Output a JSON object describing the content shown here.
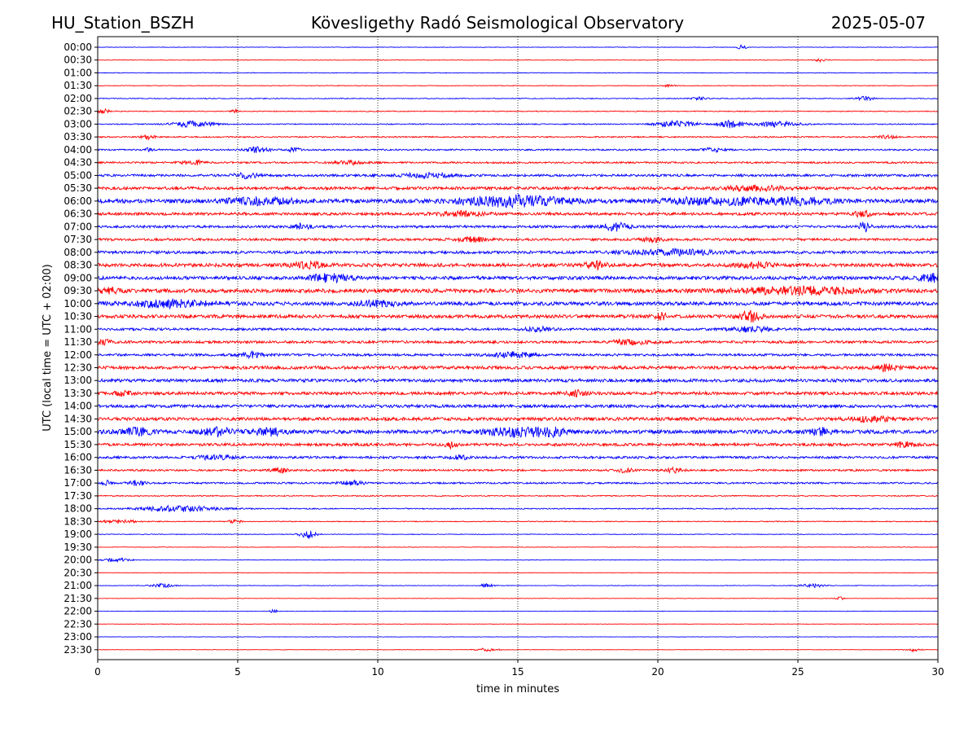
{
  "header": {
    "station": "HU_Station_BSZH",
    "observatory": "Kövesligethy Radó Seismological Observatory",
    "date": "2025-05-07"
  },
  "chart_data": {
    "type": "line",
    "title": "Kövesligethy Radó Seismological Observatory",
    "xlabel": "time in minutes",
    "ylabel": "UTC (local time = UTC + 02:00)",
    "xlim": [
      0,
      30
    ],
    "xticks": [
      0,
      5,
      10,
      15,
      20,
      25,
      30
    ],
    "vertical_gridlines_at": [
      5,
      10,
      15,
      20,
      25
    ],
    "trace_colors": [
      "#0000ff",
      "#ff0000"
    ],
    "rows": [
      {
        "label": "00:00",
        "noise": 0.05,
        "bursts": [
          [
            23.0,
            0.12,
            0.4
          ]
        ]
      },
      {
        "label": "00:30",
        "noise": 0.05,
        "bursts": [
          [
            25.8,
            0.12,
            0.3
          ]
        ]
      },
      {
        "label": "01:00",
        "noise": 0.06,
        "bursts": []
      },
      {
        "label": "01:30",
        "noise": 0.06,
        "bursts": [
          [
            20.4,
            0.12,
            0.3
          ]
        ]
      },
      {
        "label": "02:00",
        "noise": 0.08,
        "bursts": [
          [
            21.5,
            0.2,
            0.3
          ],
          [
            27.4,
            0.2,
            0.4
          ]
        ]
      },
      {
        "label": "02:30",
        "noise": 0.08,
        "bursts": [
          [
            0.2,
            0.15,
            0.5
          ],
          [
            4.9,
            0.1,
            0.3
          ]
        ]
      },
      {
        "label": "03:00",
        "noise": 0.1,
        "bursts": [
          [
            3.4,
            0.55,
            0.5
          ],
          [
            20.7,
            0.5,
            0.55
          ],
          [
            22.6,
            0.3,
            0.7
          ],
          [
            24.3,
            0.6,
            0.45
          ]
        ]
      },
      {
        "label": "03:30",
        "noise": 0.12,
        "bursts": [
          [
            1.8,
            0.15,
            0.45
          ],
          [
            28.2,
            0.2,
            0.35
          ]
        ]
      },
      {
        "label": "04:00",
        "noise": 0.14,
        "bursts": [
          [
            1.8,
            0.15,
            0.4
          ],
          [
            5.7,
            0.3,
            0.55
          ],
          [
            7.0,
            0.15,
            0.4
          ],
          [
            22.0,
            0.3,
            0.35
          ]
        ]
      },
      {
        "label": "04:30",
        "noise": 0.16,
        "bursts": [
          [
            3.4,
            0.3,
            0.45
          ],
          [
            9.0,
            0.4,
            0.35
          ]
        ]
      },
      {
        "label": "05:00",
        "noise": 0.22,
        "bursts": [
          [
            5.3,
            0.3,
            0.45
          ],
          [
            11.7,
            0.6,
            0.45
          ]
        ]
      },
      {
        "label": "05:30",
        "noise": 0.27,
        "bursts": [
          [
            23.5,
            0.8,
            0.4
          ]
        ]
      },
      {
        "label": "06:00",
        "noise": 0.38,
        "bursts": [
          [
            5.8,
            0.8,
            0.6
          ],
          [
            14.8,
            1.3,
            0.9
          ],
          [
            22.2,
            1.5,
            0.6
          ],
          [
            25.2,
            0.8,
            0.45
          ]
        ]
      },
      {
        "label": "06:30",
        "noise": 0.26,
        "bursts": [
          [
            12.9,
            0.6,
            0.4
          ],
          [
            27.3,
            0.2,
            0.6
          ]
        ]
      },
      {
        "label": "07:00",
        "noise": 0.24,
        "bursts": [
          [
            7.3,
            0.2,
            0.5
          ],
          [
            18.5,
            0.3,
            0.75
          ],
          [
            27.4,
            0.15,
            0.9
          ]
        ]
      },
      {
        "label": "07:30",
        "noise": 0.22,
        "bursts": [
          [
            13.3,
            0.4,
            0.45
          ],
          [
            19.8,
            0.25,
            0.55
          ]
        ]
      },
      {
        "label": "08:00",
        "noise": 0.26,
        "bursts": [
          [
            20.5,
            1.2,
            0.45
          ]
        ]
      },
      {
        "label": "08:30",
        "noise": 0.32,
        "bursts": [
          [
            7.5,
            0.4,
            0.6
          ],
          [
            17.8,
            0.3,
            0.6
          ],
          [
            23.5,
            0.4,
            0.5
          ]
        ]
      },
      {
        "label": "09:00",
        "noise": 0.32,
        "bursts": [
          [
            8.3,
            0.5,
            0.7
          ],
          [
            29.8,
            0.3,
            0.95
          ]
        ]
      },
      {
        "label": "09:30",
        "noise": 0.36,
        "bursts": [
          [
            0.3,
            0.3,
            0.55
          ],
          [
            25.0,
            1.6,
            0.6
          ]
        ]
      },
      {
        "label": "10:00",
        "noise": 0.34,
        "bursts": [
          [
            2.5,
            1.0,
            0.6
          ],
          [
            10.0,
            0.5,
            0.45
          ]
        ]
      },
      {
        "label": "10:30",
        "noise": 0.32,
        "bursts": [
          [
            20.1,
            0.15,
            0.6
          ],
          [
            23.3,
            0.25,
            0.9
          ]
        ]
      },
      {
        "label": "11:00",
        "noise": 0.22,
        "bursts": [
          [
            15.7,
            0.3,
            0.45
          ],
          [
            23.3,
            0.5,
            0.45
          ]
        ]
      },
      {
        "label": "11:30",
        "noise": 0.24,
        "bursts": [
          [
            0.2,
            0.2,
            0.4
          ],
          [
            19.0,
            0.5,
            0.4
          ]
        ]
      },
      {
        "label": "12:00",
        "noise": 0.22,
        "bursts": [
          [
            5.5,
            0.3,
            0.55
          ],
          [
            14.8,
            0.5,
            0.5
          ]
        ]
      },
      {
        "label": "12:30",
        "noise": 0.3,
        "bursts": [
          [
            28.2,
            0.3,
            0.55
          ]
        ]
      },
      {
        "label": "13:00",
        "noise": 0.3,
        "bursts": []
      },
      {
        "label": "13:30",
        "noise": 0.28,
        "bursts": [
          [
            0.9,
            0.2,
            0.5
          ],
          [
            17.1,
            0.25,
            0.5
          ]
        ]
      },
      {
        "label": "14:00",
        "noise": 0.28,
        "bursts": []
      },
      {
        "label": "14:30",
        "noise": 0.3,
        "bursts": [
          [
            27.6,
            0.5,
            0.4
          ]
        ]
      },
      {
        "label": "15:00",
        "noise": 0.36,
        "bursts": [
          [
            1.4,
            0.4,
            0.6
          ],
          [
            4.3,
            0.4,
            0.75
          ],
          [
            6.1,
            0.4,
            0.6
          ],
          [
            15.0,
            0.8,
            0.7
          ],
          [
            16.2,
            0.4,
            0.55
          ],
          [
            25.8,
            0.3,
            0.55
          ]
        ]
      },
      {
        "label": "15:30",
        "noise": 0.26,
        "bursts": [
          [
            12.6,
            0.15,
            0.55
          ],
          [
            28.8,
            0.3,
            0.4
          ]
        ]
      },
      {
        "label": "16:00",
        "noise": 0.22,
        "bursts": [
          [
            4.2,
            0.4,
            0.45
          ],
          [
            12.9,
            0.2,
            0.5
          ]
        ]
      },
      {
        "label": "16:30",
        "noise": 0.18,
        "bursts": [
          [
            6.5,
            0.2,
            0.45
          ],
          [
            18.8,
            0.2,
            0.4
          ],
          [
            20.6,
            0.2,
            0.4
          ]
        ]
      },
      {
        "label": "17:00",
        "noise": 0.16,
        "bursts": [
          [
            0.3,
            0.1,
            0.45
          ],
          [
            1.4,
            0.2,
            0.5
          ],
          [
            9.1,
            0.3,
            0.4
          ]
        ]
      },
      {
        "label": "17:30",
        "noise": 0.1,
        "bursts": []
      },
      {
        "label": "18:00",
        "noise": 0.1,
        "bursts": [
          [
            2.9,
            1.0,
            0.55
          ]
        ]
      },
      {
        "label": "18:30",
        "noise": 0.08,
        "bursts": [
          [
            0.8,
            0.4,
            0.35
          ],
          [
            4.9,
            0.15,
            0.4
          ]
        ]
      },
      {
        "label": "19:00",
        "noise": 0.06,
        "bursts": [
          [
            7.5,
            0.2,
            0.8
          ]
        ]
      },
      {
        "label": "19:30",
        "noise": 0.05,
        "bursts": []
      },
      {
        "label": "20:00",
        "noise": 0.05,
        "bursts": [
          [
            0.7,
            0.3,
            0.35
          ]
        ]
      },
      {
        "label": "20:30",
        "noise": 0.04,
        "bursts": []
      },
      {
        "label": "21:00",
        "noise": 0.05,
        "bursts": [
          [
            2.3,
            0.3,
            0.35
          ],
          [
            13.9,
            0.15,
            0.5
          ],
          [
            25.5,
            0.3,
            0.35
          ]
        ]
      },
      {
        "label": "21:30",
        "noise": 0.04,
        "bursts": [
          [
            26.5,
            0.1,
            0.3
          ]
        ]
      },
      {
        "label": "22:00",
        "noise": 0.04,
        "bursts": [
          [
            6.3,
            0.1,
            0.35
          ]
        ]
      },
      {
        "label": "22:30",
        "noise": 0.04,
        "bursts": []
      },
      {
        "label": "23:00",
        "noise": 0.04,
        "bursts": []
      },
      {
        "label": "23:30",
        "noise": 0.04,
        "bursts": [
          [
            13.9,
            0.3,
            0.3
          ],
          [
            29.1,
            0.2,
            0.3
          ]
        ]
      }
    ]
  }
}
